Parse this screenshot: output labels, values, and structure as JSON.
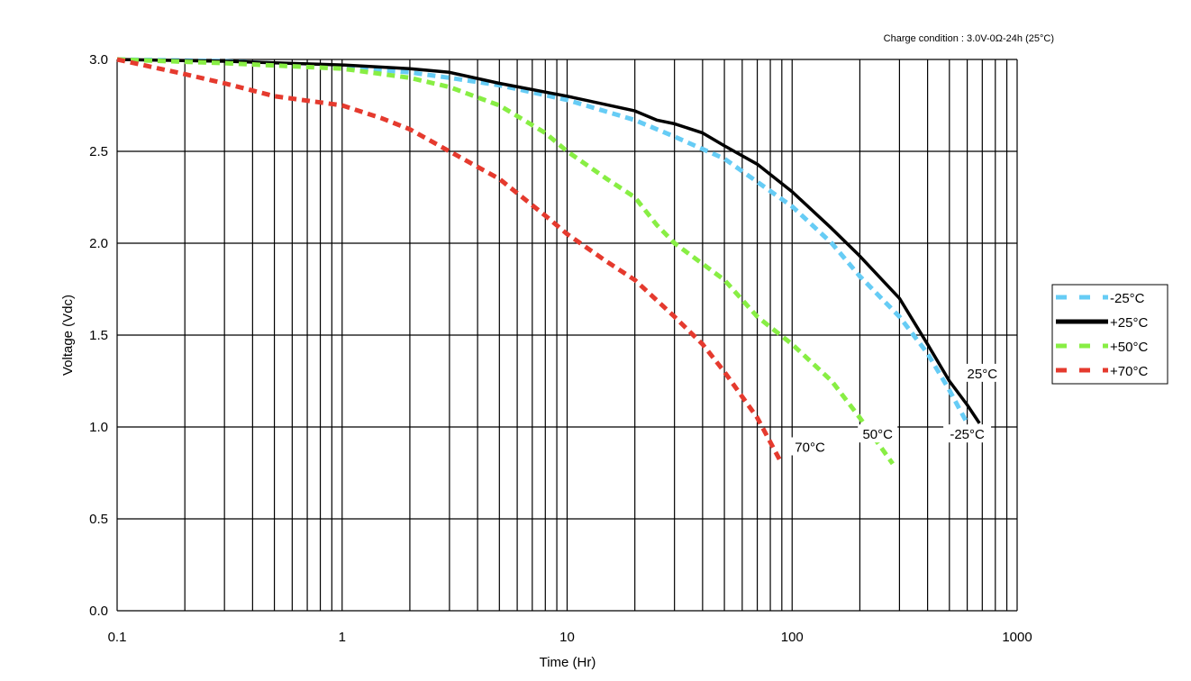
{
  "chart_data": {
    "type": "line",
    "subtitle": "Charge condition : 3.0V-0Ω-24h (25°C)",
    "xlabel": "Time (Hr)",
    "ylabel": "Voltage (Vdc)",
    "xscale": "log",
    "xlim": [
      0.1,
      1000
    ],
    "ylim": [
      0.0,
      3.0
    ],
    "x_ticks": [
      "0.1",
      "1",
      "10",
      "100",
      "1000"
    ],
    "y_ticks": [
      "0.0",
      "0.5",
      "1.0",
      "1.5",
      "2.0",
      "2.5",
      "3.0"
    ],
    "grid": true,
    "legend_position": "right",
    "series": [
      {
        "name": "-25°C",
        "color": "#66ccf5",
        "style": "dashed",
        "x": [
          0.1,
          0.3,
          1,
          2,
          3,
          5,
          10,
          20,
          30,
          50,
          100,
          150,
          200,
          300,
          400,
          500,
          600
        ],
        "y": [
          3.0,
          2.99,
          2.96,
          2.93,
          2.9,
          2.86,
          2.78,
          2.67,
          2.58,
          2.46,
          2.2,
          2.0,
          1.82,
          1.6,
          1.4,
          1.2,
          1.02
        ]
      },
      {
        "name": "+25°C",
        "color": "#000000",
        "style": "solid",
        "x": [
          0.1,
          0.3,
          1,
          2,
          3,
          5,
          10,
          20,
          25,
          30,
          40,
          50,
          70,
          100,
          150,
          200,
          300,
          400,
          500,
          600,
          680
        ],
        "y": [
          3.0,
          2.99,
          2.97,
          2.95,
          2.93,
          2.87,
          2.8,
          2.72,
          2.67,
          2.65,
          2.6,
          2.53,
          2.43,
          2.28,
          2.08,
          1.93,
          1.7,
          1.45,
          1.25,
          1.12,
          1.02
        ]
      },
      {
        "name": "+50°C",
        "color": "#88ee44",
        "style": "dashed",
        "x": [
          0.1,
          0.3,
          1,
          2,
          3,
          5,
          8,
          10,
          15,
          20,
          25,
          30,
          50,
          70,
          100,
          150,
          200,
          280
        ],
        "y": [
          3.0,
          2.98,
          2.95,
          2.9,
          2.85,
          2.75,
          2.6,
          2.5,
          2.35,
          2.25,
          2.1,
          2.0,
          1.8,
          1.6,
          1.45,
          1.25,
          1.05,
          0.8
        ]
      },
      {
        "name": "+70°C",
        "color": "#e53a2e",
        "style": "dashed",
        "x": [
          0.1,
          0.2,
          0.3,
          0.5,
          1,
          1.5,
          2,
          3,
          5,
          8,
          10,
          15,
          20,
          30,
          40,
          50,
          70,
          90
        ],
        "y": [
          3.0,
          2.92,
          2.87,
          2.8,
          2.75,
          2.68,
          2.62,
          2.5,
          2.35,
          2.15,
          2.05,
          1.9,
          1.8,
          1.6,
          1.45,
          1.3,
          1.05,
          0.8
        ]
      }
    ],
    "annotations": [
      {
        "text": "25°C",
        "x": 700,
        "y": 1.28
      },
      {
        "text": "-25°C",
        "x": 600,
        "y": 0.95
      },
      {
        "text": "50°C",
        "x": 240,
        "y": 0.95
      },
      {
        "text": "70°C",
        "x": 120,
        "y": 0.88
      }
    ]
  }
}
